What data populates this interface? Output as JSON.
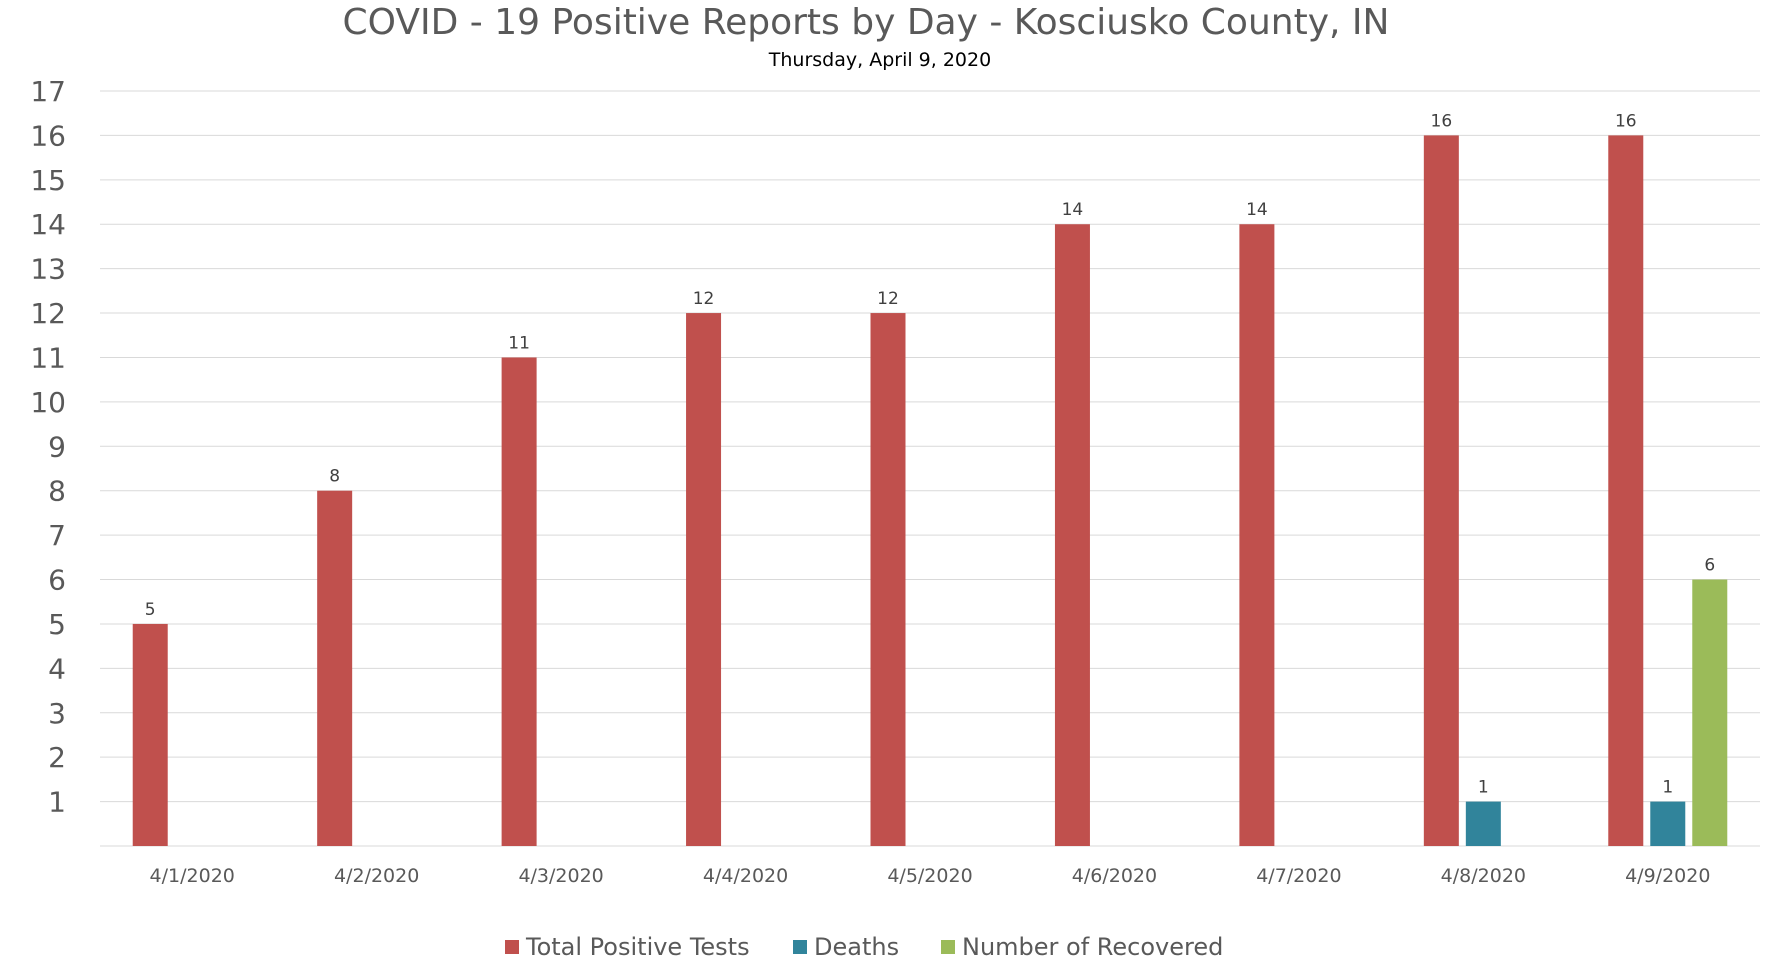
{
  "chart_data": {
    "type": "bar",
    "title": "COVID - 19 Positive Reports by Day - Kosciusko County, IN",
    "subtitle": "Thursday, April 9, 2020",
    "categories": [
      "4/1/2020",
      "4/2/2020",
      "4/3/2020",
      "4/4/2020",
      "4/5/2020",
      "4/6/2020",
      "4/7/2020",
      "4/8/2020",
      "4/9/2020"
    ],
    "series": [
      {
        "name": "Total Positive Tests",
        "color": "#C0504D",
        "values": [
          5,
          8,
          11,
          12,
          12,
          14,
          14,
          16,
          16
        ]
      },
      {
        "name": "Deaths",
        "color": "#31849B",
        "values": [
          null,
          null,
          null,
          null,
          null,
          null,
          null,
          1,
          1
        ]
      },
      {
        "name": "Number of Recovered",
        "color": "#9BBB59",
        "values": [
          null,
          null,
          null,
          null,
          null,
          null,
          null,
          null,
          6
        ]
      }
    ],
    "y_ticks": [
      "1",
      "2",
      "3",
      "4",
      "5",
      "6",
      "7",
      "8",
      "9",
      "10",
      "11",
      "12",
      "13",
      "14",
      "15",
      "16",
      "17"
    ],
    "ylim": [
      0,
      17
    ],
    "grid": true,
    "legend_position": "bottom",
    "xlabel": "",
    "ylabel": ""
  }
}
